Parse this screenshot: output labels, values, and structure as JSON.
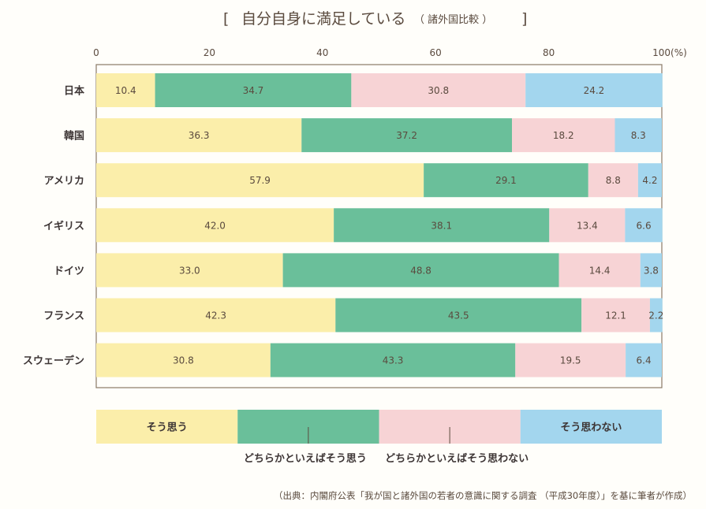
{
  "title": {
    "open_bracket": "[",
    "main": "自分自身に満足している",
    "sub": "（ 諸外国比較 ）",
    "close_bracket": "]"
  },
  "chart_data": {
    "type": "bar",
    "orientation": "horizontal-stacked-100",
    "title": "自分自身に満足している（諸外国比較）",
    "xlim": [
      0,
      100
    ],
    "x_ticks": [
      "0",
      "20",
      "40",
      "60",
      "80",
      "100(%)"
    ],
    "categories": [
      "日本",
      "韓国",
      "アメリカ",
      "イギリス",
      "ドイツ",
      "フランス",
      "スウェーデン"
    ],
    "series": [
      {
        "name": "そう思う",
        "color": "#fbeeaa",
        "values": [
          10.4,
          36.3,
          57.9,
          42.0,
          33.0,
          42.3,
          30.8
        ]
      },
      {
        "name": "どちらかといえばそう思う",
        "color": "#6abf9a",
        "values": [
          34.7,
          37.2,
          29.1,
          38.1,
          48.8,
          43.5,
          43.3
        ]
      },
      {
        "name": "どちらかといえばそう思わない",
        "color": "#f7d3d5",
        "values": [
          30.8,
          18.2,
          8.8,
          13.4,
          14.4,
          12.1,
          19.5
        ]
      },
      {
        "name": "そう思わない",
        "color": "#a3d6ee",
        "values": [
          24.2,
          8.3,
          4.2,
          6.6,
          3.8,
          2.2,
          6.4
        ]
      }
    ],
    "value_labels": [
      [
        "10.4",
        "34.7",
        "30.8",
        "24.2"
      ],
      [
        "36.3",
        "37.2",
        "18.2",
        "8.3"
      ],
      [
        "57.9",
        "29.1",
        "8.8",
        "4.2"
      ],
      [
        "42.0",
        "38.1",
        "13.4",
        "6.6"
      ],
      [
        "33.0",
        "48.8",
        "14.4",
        "3.8"
      ],
      [
        "42.3",
        "43.5",
        "12.1",
        "2.2"
      ],
      [
        "30.8",
        "43.3",
        "19.5",
        "6.4"
      ]
    ],
    "legend": {
      "inside_labels": [
        "そう思う",
        "",
        "",
        "そう思わない"
      ],
      "callouts": [
        "どちらかといえばそう思う",
        "どちらかといえばそう思わない"
      ],
      "placement": "bottom"
    },
    "grid": false
  },
  "source": "（出典：内閣府公表「我が国と諸外国の若者の意識に関する調査 （平成30年度）」を基に筆者が作成）",
  "colors": {
    "frame": "#8a7a66",
    "background": "#fffefa"
  }
}
